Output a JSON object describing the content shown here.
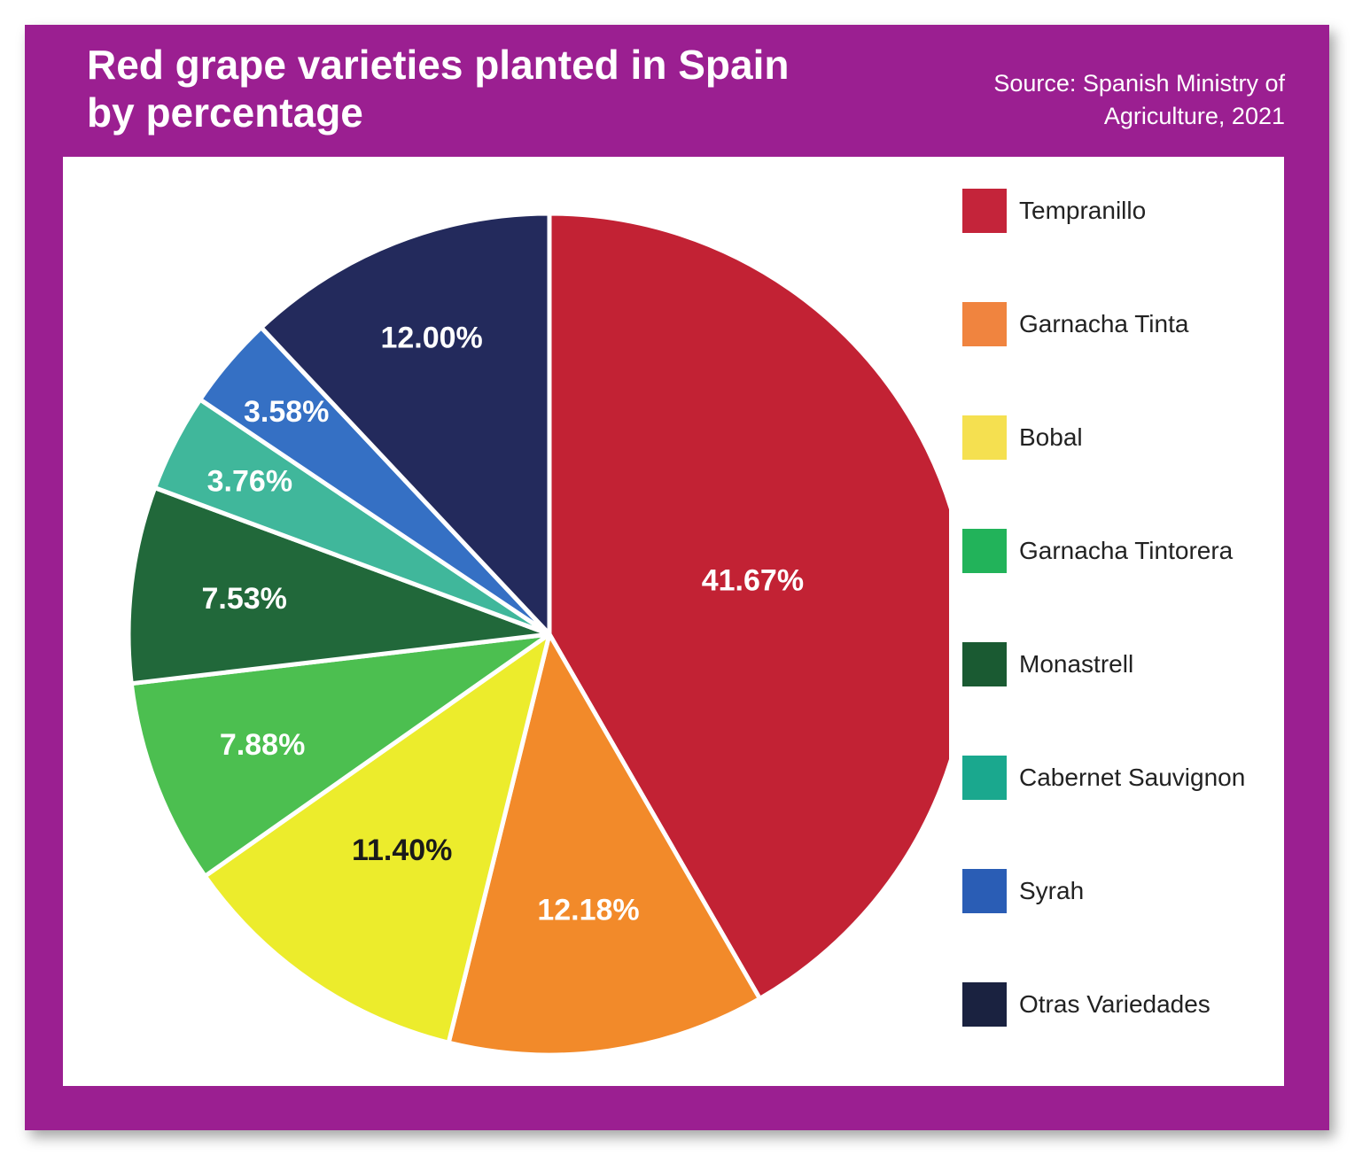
{
  "chart_data": {
    "type": "pie",
    "title": "Red grape varieties planted in Spain by percentage",
    "title_lines": [
      "Red grape varieties planted in Spain",
      "by percentage"
    ],
    "source_lines": [
      "Source: Spanish Ministry of",
      "Agriculture, 2021"
    ],
    "legend_position": "right",
    "start": "top, clockwise",
    "slices": [
      {
        "name": "Tempranillo",
        "value": 41.67,
        "label": "41.67%",
        "color": "#c22234",
        "legend_color": "#c4243a",
        "label_color": "#ffffff"
      },
      {
        "name": "Garnacha Tinta",
        "value": 12.18,
        "label": "12.18%",
        "color": "#f28a2a",
        "legend_color": "#f0843f",
        "label_color": "#ffffff"
      },
      {
        "name": "Bobal",
        "value": 11.4,
        "label": "11.40%",
        "color": "#ecec2c",
        "legend_color": "#f5e050",
        "label_color": "#1a1a1a"
      },
      {
        "name": "Garnacha Tintorera",
        "value": 7.88,
        "label": "7.88%",
        "color": "#4cbf50",
        "legend_color": "#22b35a",
        "label_color": "#ffffff"
      },
      {
        "name": "Monastrell",
        "value": 7.53,
        "label": "7.53%",
        "color": "#21683a",
        "legend_color": "#1a5a32",
        "label_color": "#ffffff"
      },
      {
        "name": "Cabernet Sauvignon",
        "value": 3.76,
        "label": "3.76%",
        "color": "#40b79b",
        "legend_color": "#1aa88e",
        "label_color": "#ffffff"
      },
      {
        "name": "Syrah",
        "value": 3.58,
        "label": "3.58%",
        "color": "#3570c4",
        "legend_color": "#2a5db5",
        "label_color": "#ffffff"
      },
      {
        "name": "Otras Variedades",
        "value": 12.0,
        "label": "12.00%",
        "color": "#232a5c",
        "legend_color": "#1a2240",
        "label_color": "#ffffff"
      }
    ]
  },
  "colors": {
    "frame": "#9b1f91",
    "panel": "#ffffff"
  }
}
